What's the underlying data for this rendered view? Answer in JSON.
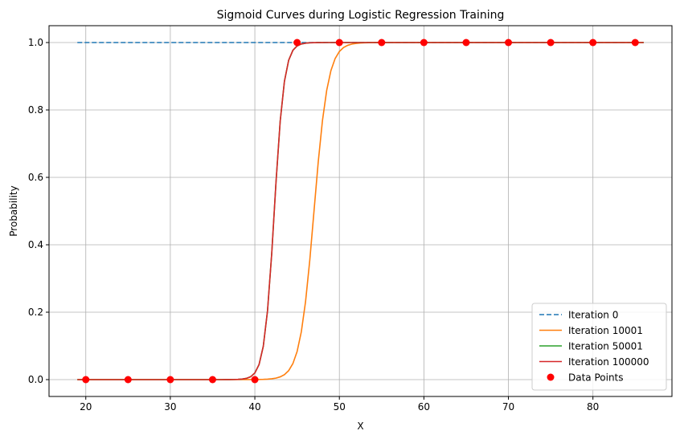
{
  "chart_data": {
    "type": "line",
    "title": "Sigmoid Curves during Logistic Regression Training",
    "xlabel": "X",
    "ylabel": "Probability",
    "xlim": [
      15.65,
      89.35
    ],
    "ylim": [
      -0.05,
      1.05
    ],
    "xticks": [
      20,
      30,
      40,
      50,
      60,
      70,
      80
    ],
    "yticks": [
      0.0,
      0.2,
      0.4,
      0.6,
      0.8,
      1.0
    ],
    "grid": true,
    "legend_position": "lower-right",
    "x_range": [
      19,
      86
    ],
    "series": [
      {
        "name": "Iteration 0",
        "style": "dashed",
        "color": "#1f77b4",
        "form": "sigmoid",
        "midpoint": null,
        "slope": 0,
        "constant": 1.0
      },
      {
        "name": "Iteration 10001",
        "style": "solid",
        "color": "#ff7f0e",
        "form": "sigmoid",
        "midpoint": 47.0,
        "slope": 1.2
      },
      {
        "name": "Iteration 50001",
        "style": "solid",
        "color": "#2ca02c",
        "form": "sigmoid",
        "midpoint": 42.3,
        "slope": 1.7
      },
      {
        "name": "Iteration 100000",
        "style": "solid",
        "color": "#d62728",
        "form": "sigmoid",
        "midpoint": 42.3,
        "slope": 1.7
      }
    ],
    "points": {
      "name": "Data Points",
      "color": "#ff0000",
      "x": [
        20,
        25,
        30,
        35,
        40,
        45,
        50,
        55,
        60,
        65,
        70,
        75,
        80,
        85
      ],
      "y": [
        0,
        0,
        0,
        0,
        0,
        1,
        1,
        1,
        1,
        1,
        1,
        1,
        1,
        1
      ]
    }
  }
}
